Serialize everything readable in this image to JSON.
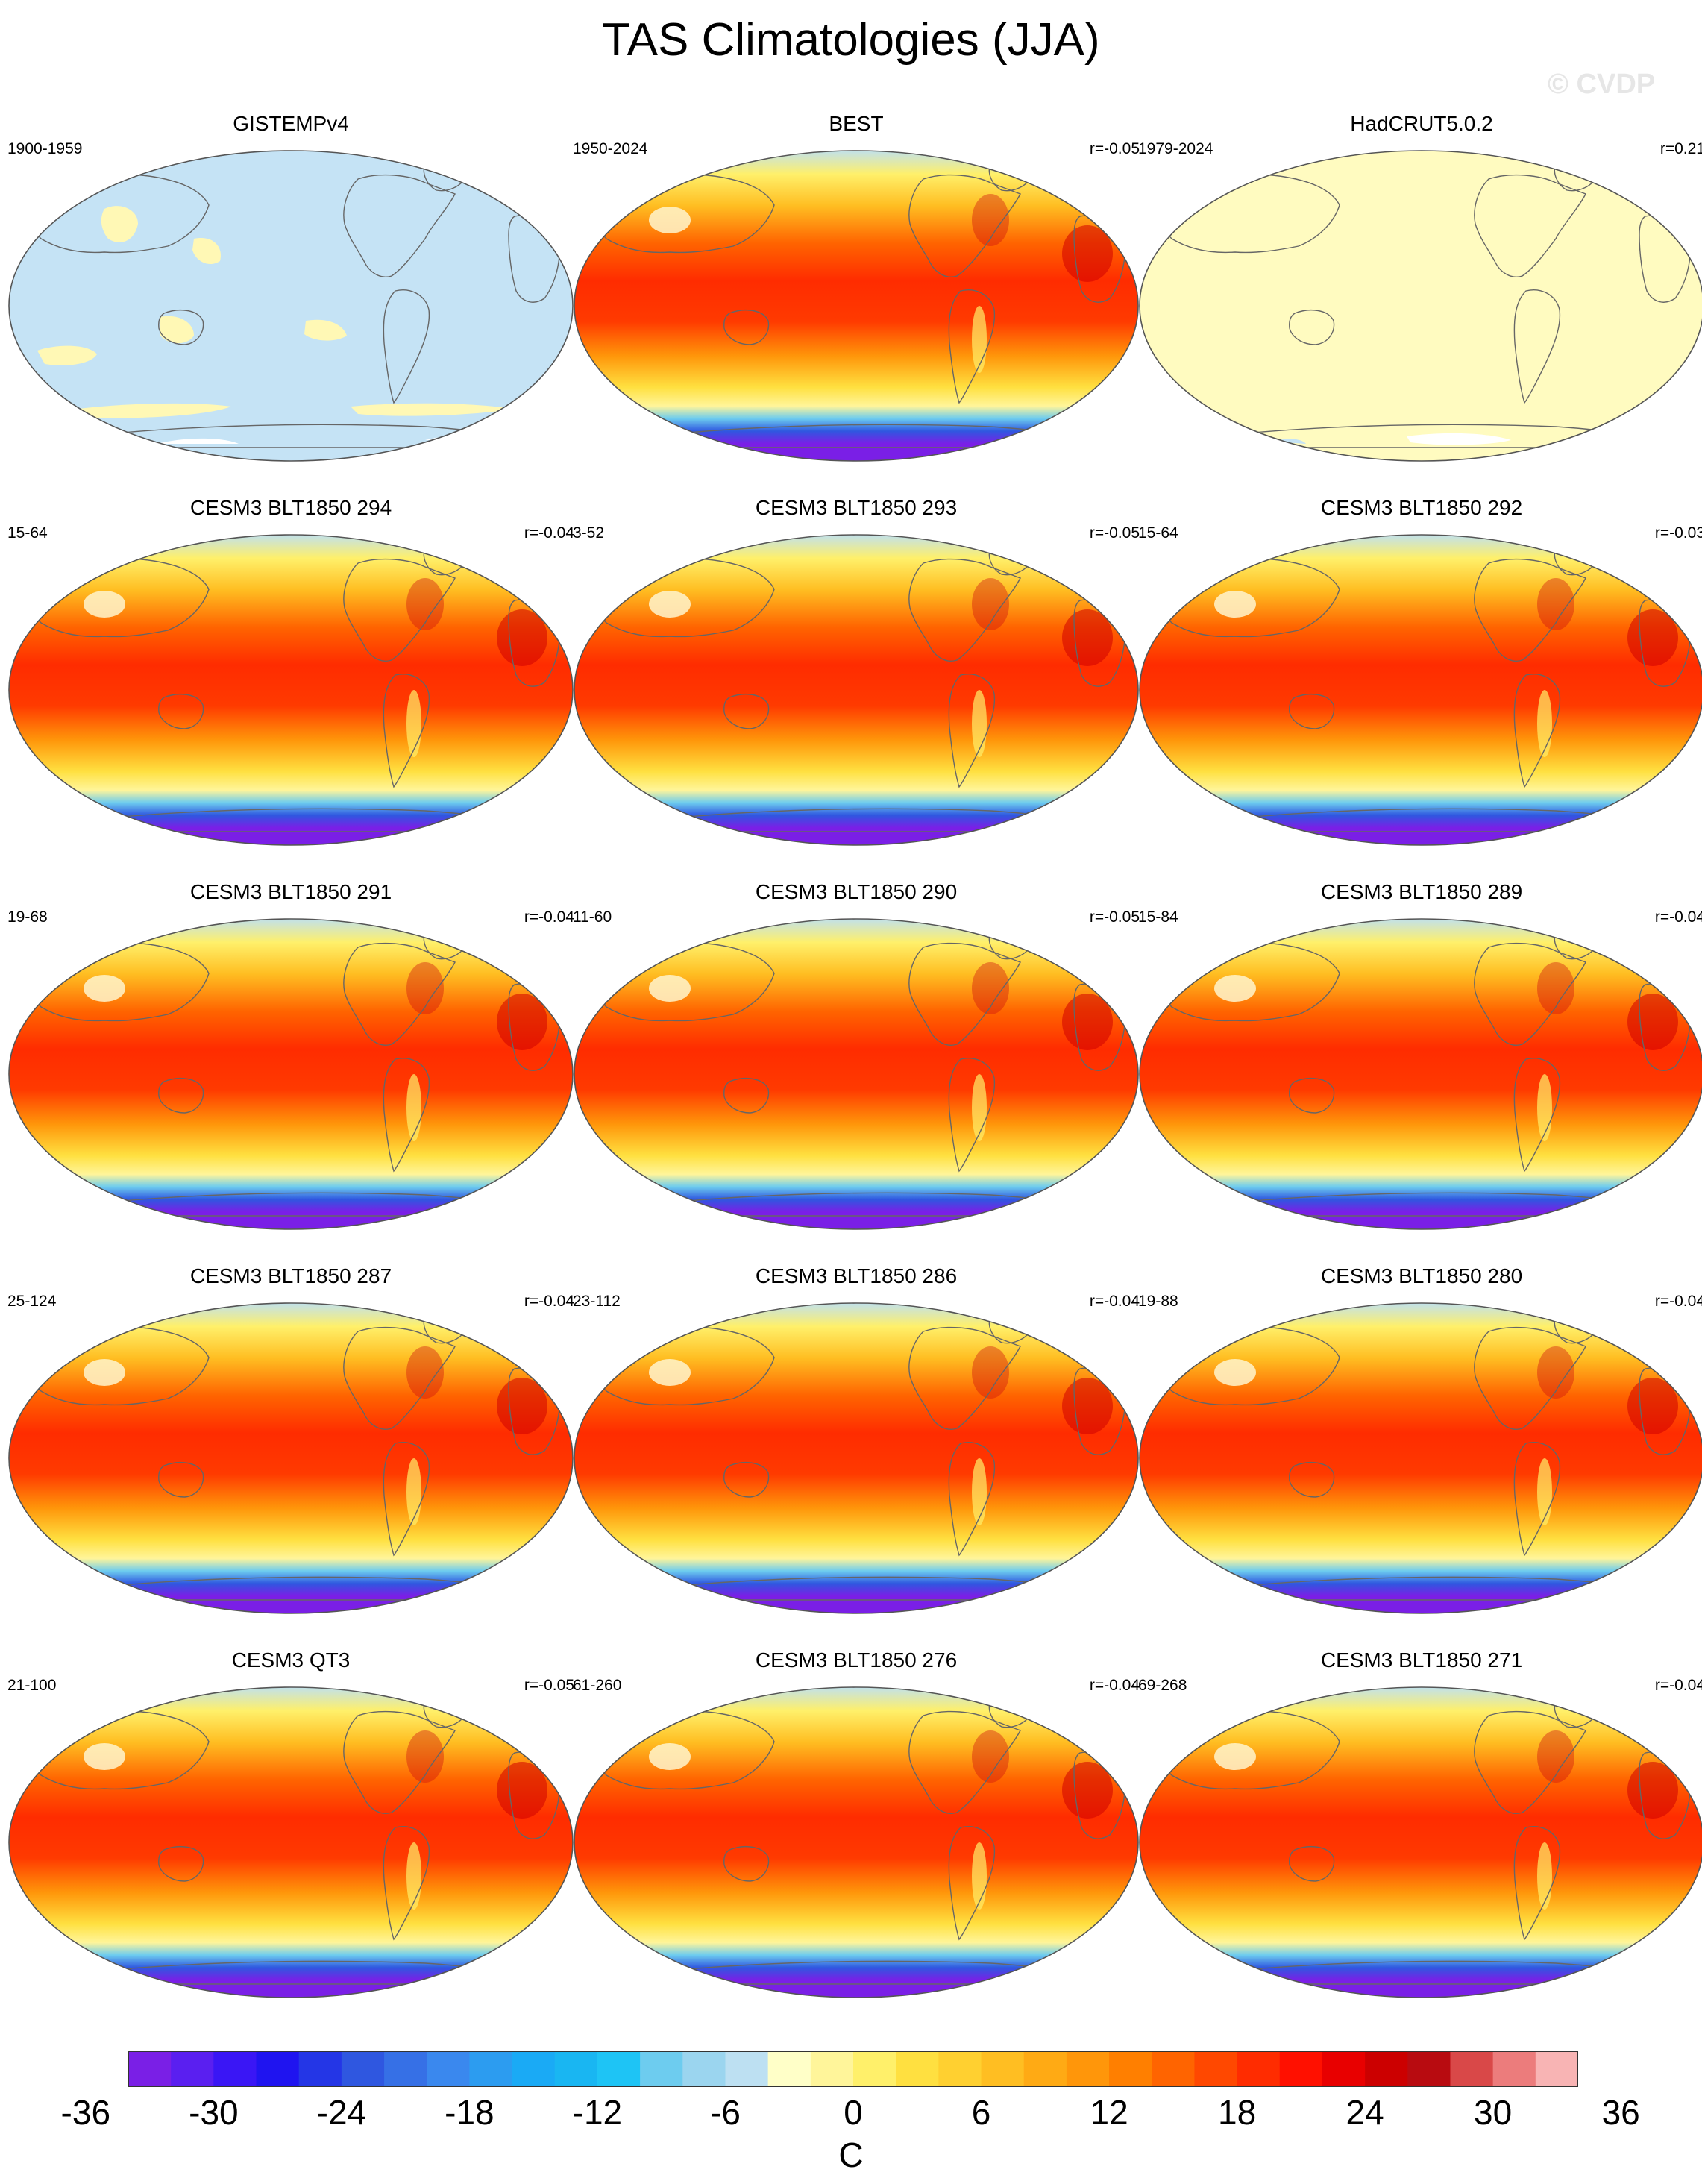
{
  "title": "TAS Climatologies (JJA)",
  "watermark": "© CVDP",
  "panels": [
    {
      "title": "GISTEMPv4",
      "range": "1900-1959",
      "r": "",
      "style": "gistemp"
    },
    {
      "title": "BEST",
      "range": "1950-2024",
      "r": "r=-0.05",
      "style": "full"
    },
    {
      "title": "HadCRUT5.0.2",
      "range": "1979-2024",
      "r": "r=0.21",
      "style": "hadcrut"
    },
    {
      "title": "CESM3 BLT1850 294",
      "range": "15-64",
      "r": "r=-0.04",
      "style": "full"
    },
    {
      "title": "CESM3 BLT1850 293",
      "range": "3-52",
      "r": "r=-0.05",
      "style": "full"
    },
    {
      "title": "CESM3 BLT1850 292",
      "range": "15-64",
      "r": "r=-0.03",
      "style": "full"
    },
    {
      "title": "CESM3 BLT1850 291",
      "range": "19-68",
      "r": "r=-0.04",
      "style": "full"
    },
    {
      "title": "CESM3 BLT1850 290",
      "range": "11-60",
      "r": "r=-0.05",
      "style": "full"
    },
    {
      "title": "CESM3 BLT1850 289",
      "range": "15-84",
      "r": "r=-0.04",
      "style": "full"
    },
    {
      "title": "CESM3 BLT1850 287",
      "range": "25-124",
      "r": "r=-0.04",
      "style": "full"
    },
    {
      "title": "CESM3 BLT1850 286",
      "range": "23-112",
      "r": "r=-0.04",
      "style": "full"
    },
    {
      "title": "CESM3 BLT1850 280",
      "range": "19-88",
      "r": "r=-0.04",
      "style": "full"
    },
    {
      "title": "CESM3 QT3",
      "range": "21-100",
      "r": "r=-0.05",
      "style": "full"
    },
    {
      "title": "CESM3 BLT1850 276",
      "range": "61-260",
      "r": "r=-0.04",
      "style": "full"
    },
    {
      "title": "CESM3 BLT1850 271",
      "range": "69-268",
      "r": "r=-0.04",
      "style": "full"
    }
  ],
  "colorbar": {
    "units": "C",
    "tick_labels": [
      "-36",
      "-30",
      "-24",
      "-18",
      "-12",
      "-6",
      "0",
      "6",
      "12",
      "18",
      "24",
      "30",
      "36"
    ],
    "colors": [
      "#7a1fe6",
      "#5a1ff0",
      "#3a16f5",
      "#1f14f0",
      "#2436e6",
      "#2f57e0",
      "#3670e6",
      "#3a88ee",
      "#2c9cf0",
      "#1aaaf5",
      "#19b6f2",
      "#1ec4f5",
      "#6dccef",
      "#9bd5ef",
      "#bde0f2",
      "#ffffc8",
      "#fff59a",
      "#fff06a",
      "#ffe040",
      "#ffd030",
      "#ffbe22",
      "#ffaa14",
      "#ff960a",
      "#ff7f00",
      "#ff6400",
      "#ff4800",
      "#ff2c00",
      "#ff1000",
      "#e80000",
      "#cc0000",
      "#b80b10",
      "#d94848",
      "#ec7c7c",
      "#f8b4b4"
    ]
  }
}
